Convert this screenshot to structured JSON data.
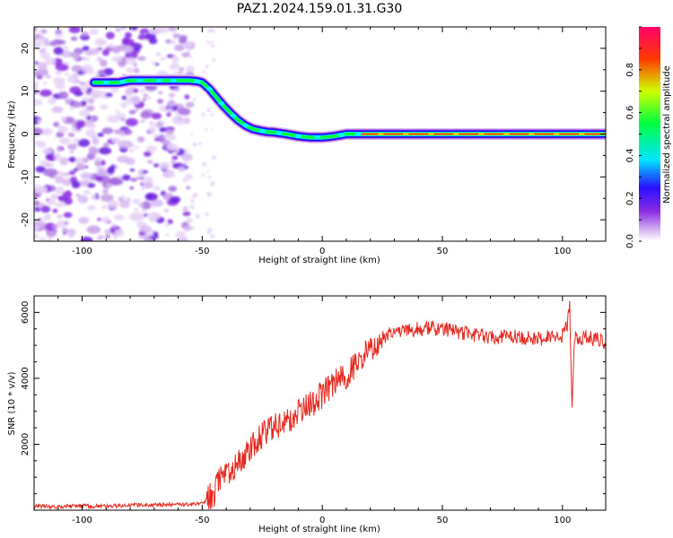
{
  "title": "PAZ1.2024.159.01.31.G30",
  "chart_data": [
    {
      "type": "heatmap",
      "xlabel": "Height of straight line (km)",
      "ylabel": "Frequency (Hz)",
      "xlim": [
        -120,
        118
      ],
      "ylim": [
        -25,
        25
      ],
      "x_ticks": [
        -100,
        -50,
        0,
        50,
        100
      ],
      "y_ticks": [
        -20,
        -10,
        0,
        10,
        20
      ],
      "ridge": {
        "x": [
          -95,
          -90,
          -85,
          -80,
          -75,
          -70,
          -65,
          -60,
          -55,
          -52,
          -50,
          -47,
          -44,
          -41,
          -38,
          -35,
          -32,
          -29,
          -26,
          -23,
          -20,
          -15,
          -10,
          -5,
          0,
          5,
          10,
          15,
          20,
          25,
          40,
          60,
          80,
          100,
          118
        ],
        "freq": [
          12,
          12,
          12,
          12.5,
          12.5,
          12.5,
          12.5,
          12.5,
          12.5,
          12.3,
          12,
          10.5,
          8.5,
          6.5,
          4.8,
          3.2,
          2,
          1.2,
          0.8,
          0.5,
          0.4,
          0,
          -0.5,
          -0.8,
          -0.8,
          -0.5,
          0,
          0,
          0,
          0,
          0,
          0,
          0,
          0,
          0
        ]
      },
      "colorbar": {
        "label": "Normalized spectral amplitude",
        "range": [
          0,
          1
        ],
        "ticks": [
          0.0,
          0.2,
          0.4,
          0.6,
          0.8
        ]
      }
    },
    {
      "type": "line",
      "xlabel": "Height of straight line (km)",
      "ylabel": "SNR (10 * v/v)",
      "xlim": [
        -120,
        118
      ],
      "ylim": [
        0,
        6500
      ],
      "x_ticks": [
        -100,
        -50,
        0,
        50,
        100
      ],
      "y_ticks": [
        2000,
        4000,
        6000
      ],
      "color": "#e8281e",
      "series": [
        {
          "x": [
            -120,
            -110,
            -100,
            -90,
            -80,
            -70,
            -60,
            -55,
            -50,
            -47,
            -45,
            -43,
            -40,
            -35,
            -30,
            -25,
            -20,
            -15,
            -10,
            -5,
            0,
            5,
            10,
            15,
            20,
            25,
            30,
            35,
            40,
            50,
            60,
            70,
            80,
            90,
            100,
            102,
            103,
            104,
            105,
            110,
            118
          ],
          "values": [
            120,
            110,
            130,
            120,
            150,
            160,
            170,
            180,
            200,
            400,
            500,
            900,
            1100,
            1400,
            1900,
            2300,
            2500,
            2700,
            3000,
            3200,
            3500,
            3900,
            4100,
            4500,
            4900,
            5200,
            5400,
            5450,
            5500,
            5500,
            5350,
            5250,
            5250,
            5200,
            5300,
            5600,
            6300,
            2900,
            5200,
            5250,
            5100
          ]
        }
      ]
    }
  ],
  "colors": {
    "line": "#e8281e",
    "colormap": [
      "#ffffff",
      "#d8b8f2",
      "#8a2be2",
      "#3d10ff",
      "#0000ff",
      "#00e5ff",
      "#00ff40",
      "#d0ff00",
      "#ff3a00",
      "#ff006a"
    ]
  }
}
